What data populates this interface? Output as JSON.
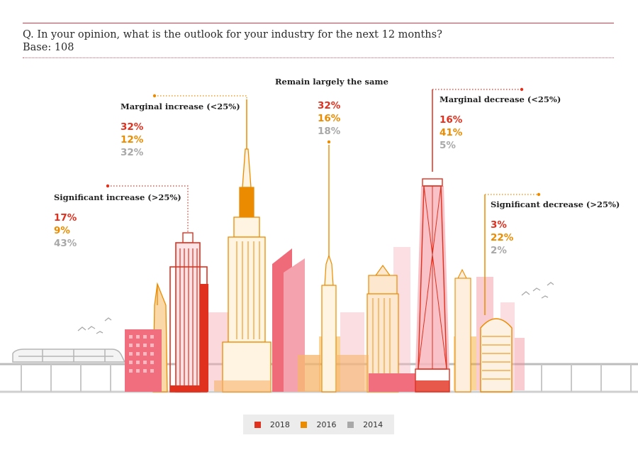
{
  "question": "Q. In your opinion, what is the outlook for your industry for the next 12 months?",
  "base": "Base: 108",
  "colors": {
    "y2018": "#e0301e",
    "y2016": "#eb8c00",
    "y2014": "#a8a8a8",
    "rule": "#d93a48"
  },
  "chart_data": {
    "type": "bar",
    "title": "Q. In your opinion, what is the outlook for your industry for the next 12 months?",
    "subtitle": "Base: 108",
    "categories": [
      "Significant increase (>25%)",
      "Marginal increase (<25%)",
      "Remain largely the same",
      "Marginal decrease (<25%)",
      "Significant decrease (>25%)"
    ],
    "series": [
      {
        "name": "2018",
        "values": [
          17,
          32,
          32,
          16,
          3
        ],
        "labels": [
          "17%",
          "32%",
          "32%",
          "16%",
          "3%"
        ]
      },
      {
        "name": "2016",
        "values": [
          9,
          12,
          16,
          41,
          22
        ],
        "labels": [
          "9%",
          "12%",
          "16%",
          "41%",
          "22%"
        ]
      },
      {
        "name": "2014",
        "values": [
          43,
          32,
          18,
          5,
          2
        ],
        "labels": [
          "43%",
          "32%",
          "18%",
          "5%",
          "2%"
        ]
      }
    ],
    "legend": [
      "2018",
      "2016",
      "2014"
    ],
    "legend_position": "bottom-center",
    "xlabel": "",
    "ylabel": ""
  }
}
